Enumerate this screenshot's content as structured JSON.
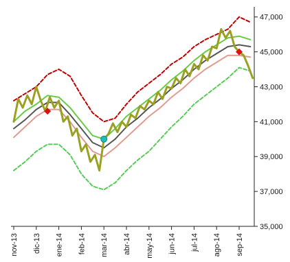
{
  "chart_data": {
    "type": "line",
    "title": "",
    "xlabel": "",
    "ylabel": "",
    "ylim": [
      35000,
      47500
    ],
    "grid": false,
    "legend": "none",
    "x_ticks": [
      "nov-13",
      "dic-13",
      "ene-14",
      "feb-14",
      "mar-14",
      "abr-14",
      "may-14",
      "jun-14",
      "jul-14",
      "ago-14",
      "sep-14"
    ],
    "y_ticks": [
      35000,
      37000,
      39000,
      41000,
      43000,
      45000,
      47000
    ],
    "y_tick_labels": [
      "35,000",
      "37,000",
      "39,000",
      "41,000",
      "43,000",
      "45,000",
      "47,000"
    ],
    "series": [
      {
        "key": "upper_band",
        "color": "#c00000",
        "style": "dashed",
        "width": 2,
        "x": [
          0,
          0.5,
          1,
          1.5,
          2,
          2.5,
          3,
          3.5,
          4,
          4.5,
          5,
          5.5,
          6,
          6.5,
          7,
          7.5,
          8,
          8.5,
          9,
          9.5,
          10,
          10.5
        ],
        "y": [
          42200,
          42600,
          43000,
          43700,
          44000,
          43600,
          42500,
          41500,
          41000,
          41200,
          42000,
          42700,
          43200,
          43700,
          44300,
          44700,
          45300,
          45700,
          46000,
          46300,
          47000,
          46700
        ]
      },
      {
        "key": "upper_mid_band",
        "color": "#66cc44",
        "style": "solid",
        "width": 2,
        "x": [
          0,
          0.5,
          1,
          1.5,
          2,
          2.5,
          3,
          3.5,
          4,
          4.5,
          5,
          5.5,
          6,
          6.5,
          7,
          7.5,
          8,
          8.5,
          9,
          9.5,
          10,
          10.5
        ],
        "y": [
          41000,
          41600,
          42000,
          42500,
          42400,
          41800,
          41000,
          40200,
          40000,
          40600,
          41300,
          41800,
          42300,
          42800,
          43400,
          43900,
          44500,
          45000,
          45400,
          45800,
          45900,
          45700
        ]
      },
      {
        "key": "moving_average",
        "color": "#555555",
        "style": "solid",
        "width": 2,
        "x": [
          0,
          0.5,
          1,
          1.5,
          2,
          2.5,
          3,
          3.5,
          4,
          4.5,
          5,
          5.5,
          6,
          6.5,
          7,
          7.5,
          8,
          8.5,
          9,
          9.5,
          10,
          10.5
        ],
        "y": [
          40600,
          41100,
          41700,
          42100,
          42100,
          41400,
          40600,
          39800,
          39500,
          40000,
          40700,
          41200,
          41800,
          42300,
          42900,
          43400,
          44000,
          44500,
          44900,
          45300,
          45400,
          45300
        ]
      },
      {
        "key": "lower_mid_band",
        "color": "#e09a90",
        "style": "solid",
        "width": 2,
        "x": [
          0,
          0.5,
          1,
          1.5,
          2,
          2.5,
          3,
          3.5,
          4,
          4.5,
          5,
          5.5,
          6,
          6.5,
          7,
          7.5,
          8,
          8.5,
          9,
          9.5,
          10,
          10.5
        ],
        "y": [
          40100,
          40700,
          41300,
          41700,
          41700,
          41000,
          40100,
          39300,
          39000,
          39500,
          40100,
          40700,
          41300,
          41800,
          42400,
          42900,
          43500,
          44000,
          44400,
          44800,
          44800,
          44700
        ]
      },
      {
        "key": "lower_band",
        "color": "#55cc55",
        "style": "dashed",
        "width": 2,
        "x": [
          0,
          0.5,
          1,
          1.5,
          2,
          2.5,
          3,
          3.5,
          4,
          4.5,
          5,
          5.5,
          6,
          6.5,
          7,
          7.5,
          8,
          8.5,
          9,
          9.5,
          10,
          10.5
        ],
        "y": [
          38200,
          38700,
          39300,
          39700,
          39700,
          39100,
          38000,
          37300,
          37100,
          37500,
          38200,
          38800,
          39300,
          40000,
          40700,
          41300,
          42000,
          42500,
          43000,
          43500,
          44100,
          43900
        ]
      },
      {
        "key": "price",
        "color": "#9aa020",
        "style": "solid",
        "width": 3,
        "x": [
          0,
          0.2,
          0.4,
          0.6,
          0.8,
          1.0,
          1.2,
          1.4,
          1.6,
          1.8,
          2.0,
          2.2,
          2.4,
          2.6,
          2.8,
          3.0,
          3.2,
          3.4,
          3.6,
          3.8,
          4.0,
          4.2,
          4.4,
          4.6,
          4.8,
          5.0,
          5.2,
          5.4,
          5.6,
          5.8,
          6.0,
          6.2,
          6.4,
          6.6,
          6.8,
          7.0,
          7.2,
          7.4,
          7.6,
          7.8,
          8.0,
          8.2,
          8.4,
          8.6,
          8.8,
          9.0,
          9.2,
          9.4,
          9.6,
          9.8,
          10.0,
          10.2,
          10.4,
          10.6
        ],
        "y": [
          41000,
          42300,
          41800,
          42500,
          42000,
          43000,
          42200,
          41600,
          42400,
          41800,
          42200,
          41000,
          41300,
          40200,
          40600,
          39300,
          39700,
          38700,
          39100,
          38200,
          40000,
          40300,
          40900,
          40400,
          41000,
          40700,
          41400,
          41200,
          41900,
          41700,
          42200,
          42000,
          42700,
          42300,
          43000,
          42900,
          43500,
          43200,
          44000,
          43600,
          44300,
          44000,
          44800,
          44500,
          45300,
          45200,
          46300,
          45800,
          46200,
          45300,
          45000,
          44800,
          44200,
          43500
        ]
      }
    ],
    "markers": [
      {
        "x": 1.5,
        "y": 41600,
        "shape": "diamond",
        "color": "#dd1111"
      },
      {
        "x": 4.0,
        "y": 40000,
        "shape": "circle",
        "color": "#22bbbb"
      },
      {
        "x": 10.0,
        "y": 45000,
        "shape": "diamond",
        "color": "#dd1111"
      }
    ]
  }
}
